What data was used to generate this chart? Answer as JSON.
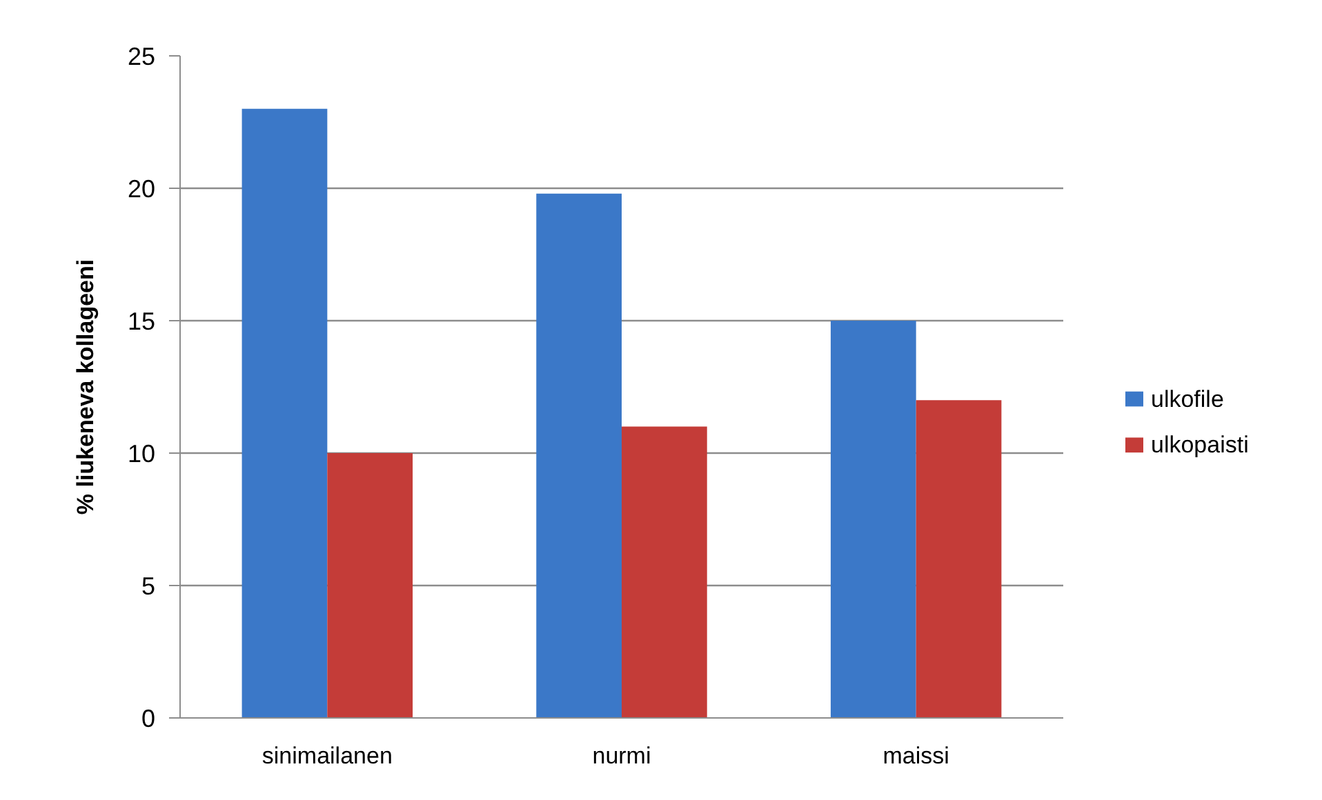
{
  "chart_data": {
    "type": "bar",
    "ylabel": "% liukeneva kollageeni",
    "categories": [
      "sinimailanen",
      "nurmi",
      "maissi"
    ],
    "series": [
      {
        "name": "ulkofile",
        "color": "#3b78c8",
        "values": [
          23,
          19.8,
          15
        ]
      },
      {
        "name": "ulkopaisti",
        "color": "#c43c38",
        "values": [
          10,
          11,
          12
        ]
      }
    ],
    "ylim": [
      0,
      25
    ],
    "yticks": [
      0,
      5,
      10,
      15,
      20,
      25
    ],
    "grid": "y",
    "legend": "right"
  }
}
